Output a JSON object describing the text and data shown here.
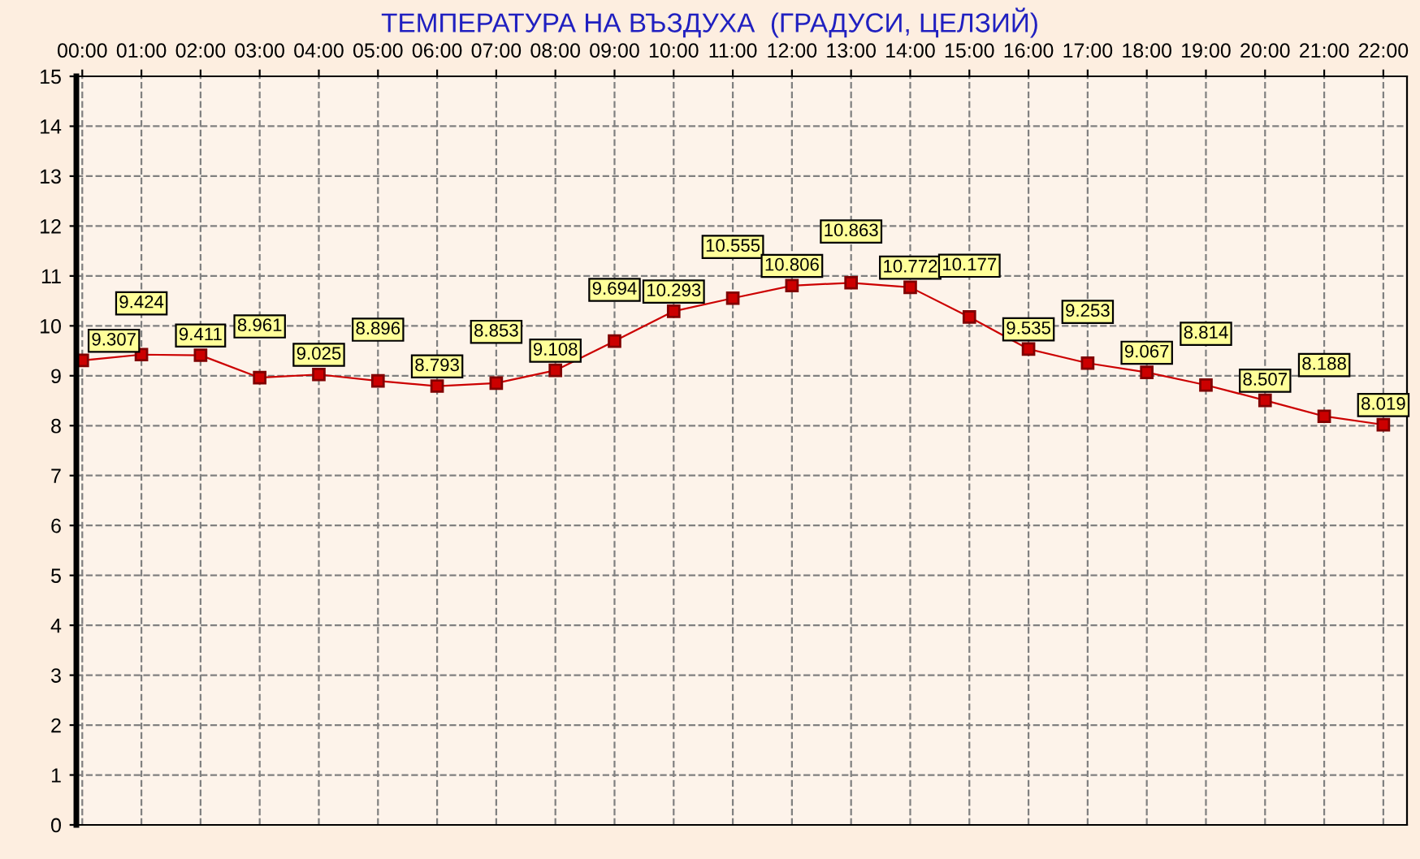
{
  "chart_data": {
    "type": "line",
    "title": "ТЕМПЕРАТУРА НА ВЪЗДУХА  (ГРАДУСИ, ЦЕЛЗИЙ)",
    "categories": [
      "00:00",
      "01:00",
      "02:00",
      "03:00",
      "04:00",
      "05:00",
      "06:00",
      "07:00",
      "08:00",
      "09:00",
      "10:00",
      "11:00",
      "12:00",
      "13:00",
      "14:00",
      "15:00",
      "16:00",
      "17:00",
      "18:00",
      "19:00",
      "20:00",
      "21:00",
      "22:00"
    ],
    "series": [
      {
        "color": "#cc0000",
        "values": [
          9.307,
          9.424,
          9.411,
          8.961,
          9.025,
          8.896,
          8.793,
          8.853,
          9.108,
          9.694,
          10.293,
          10.555,
          10.806,
          10.863,
          10.772,
          10.177,
          9.535,
          9.253,
          9.067,
          8.814,
          8.507,
          8.188,
          8.019
        ]
      }
    ],
    "ylim": [
      0,
      15
    ],
    "yticks": [
      0,
      1,
      2,
      3,
      4,
      5,
      6,
      7,
      8,
      9,
      10,
      11,
      12,
      13,
      14,
      15
    ],
    "grid": true,
    "marker": "square",
    "data_labels": true,
    "legend": false
  }
}
